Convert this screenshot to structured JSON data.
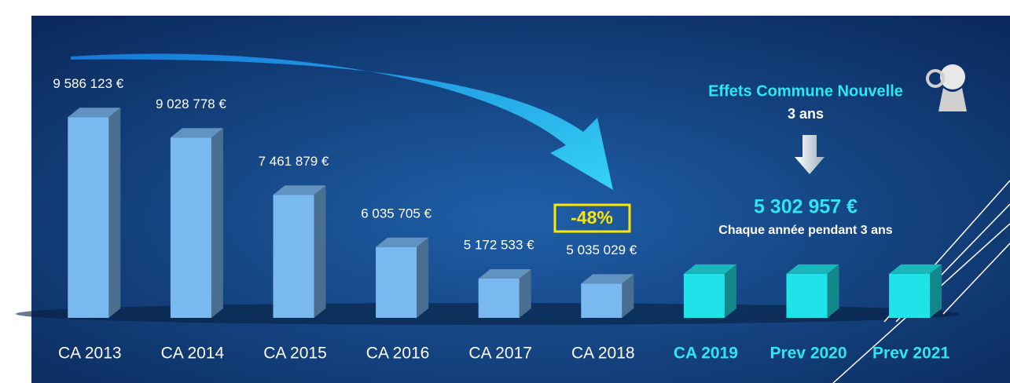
{
  "chart_data": {
    "type": "bar3d",
    "categories": [
      "CA 2013",
      "CA 2014",
      "CA 2015",
      "CA 2016",
      "CA 2017",
      "CA 2018",
      "CA 2019",
      "Prev 2020",
      "Prev 2021"
    ],
    "values": [
      9586123,
      9028778,
      7461879,
      6035705,
      5172533,
      5035029,
      5302957,
      5302957,
      5302957
    ],
    "value_labels": [
      "9 586 123 €",
      "9 028 778 €",
      "7 461 879 €",
      "6 035 705 €",
      "5 172 533 €",
      "5 035 029 €",
      null,
      null,
      null
    ],
    "colors": [
      "#7ab8f0",
      "#7ab8f0",
      "#7ab8f0",
      "#7ab8f0",
      "#7ab8f0",
      "#7ab8f0",
      "#1fe3e8",
      "#1fe3e8",
      "#1fe3e8"
    ],
    "label_colors": [
      "#ffffff",
      "#ffffff",
      "#ffffff",
      "#ffffff",
      "#ffffff",
      "#ffffff",
      "#2ee6f0",
      "#2ee6f0",
      "#2ee6f0"
    ],
    "ylim": [
      4100000,
      10000000
    ],
    "decline_label": "-48%",
    "effects_title": "Effets Commune Nouvelle",
    "effects_duration": "3 ans",
    "effects_amount": "5 302 957 €",
    "effects_note": "Chaque année pendant 3 ans"
  }
}
